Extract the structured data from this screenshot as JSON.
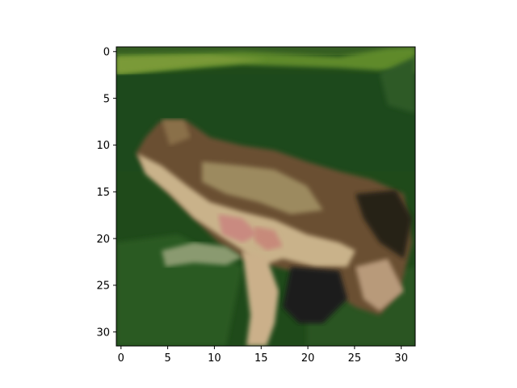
{
  "image": {
    "subject": "frog",
    "description": "Low-resolution 32x32 pixel image of a brown and tan frog on green grass"
  },
  "axes": {
    "x_ticks": [
      "0",
      "5",
      "10",
      "15",
      "20",
      "25",
      "30"
    ],
    "y_ticks": [
      "0",
      "5",
      "10",
      "15",
      "20",
      "25",
      "30"
    ]
  },
  "colors": {
    "background_green": "#1f4a1a",
    "grass_light": "#6a8a30",
    "frog_brown": "#6b4f33",
    "frog_tan": "#c9b28a",
    "frog_pink": "#c98a80",
    "frog_dark": "#262018"
  }
}
